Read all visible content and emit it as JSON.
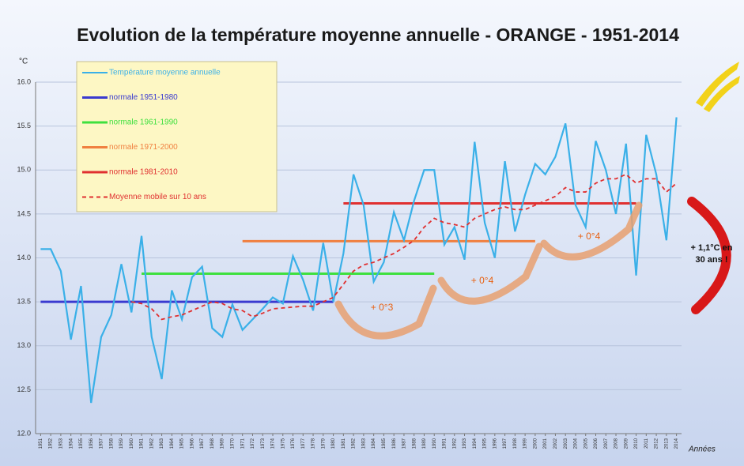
{
  "chart_data": {
    "type": "line",
    "title": "Evolution de la température moyenne annuelle - ORANGE - 1951-2014",
    "y_label": "°C",
    "x_label": "Années",
    "x": [
      1951,
      1952,
      1953,
      1954,
      1955,
      1956,
      1957,
      1958,
      1959,
      1960,
      1961,
      1962,
      1963,
      1964,
      1965,
      1966,
      1967,
      1968,
      1969,
      1970,
      1971,
      1972,
      1973,
      1974,
      1975,
      1976,
      1977,
      1978,
      1979,
      1980,
      1981,
      1982,
      1983,
      1984,
      1985,
      1986,
      1987,
      1988,
      1989,
      1990,
      1991,
      1992,
      1993,
      1994,
      1995,
      1996,
      1997,
      1998,
      1999,
      2000,
      2001,
      2002,
      2003,
      2004,
      2005,
      2006,
      2007,
      2008,
      2009,
      2010,
      2011,
      2012,
      2013,
      2014
    ],
    "xlim": [
      1950.5,
      2014.5
    ],
    "ylim": [
      12,
      16
    ],
    "yticks": [
      {
        "value": 12,
        "label": "12.0"
      },
      {
        "value": 12.5,
        "label": "12.5"
      },
      {
        "value": 13,
        "label": "13.0"
      },
      {
        "value": 13.5,
        "label": "13.5"
      },
      {
        "value": 14,
        "label": "14.0"
      },
      {
        "value": 14.5,
        "label": "14.5"
      },
      {
        "value": 15,
        "label": "15.0"
      },
      {
        "value": 15.5,
        "label": "15.5"
      },
      {
        "value": 16,
        "label": "16.0"
      }
    ],
    "series": [
      {
        "name": "Température moyenne annuelle",
        "color": "#3ab0e8",
        "dashed": false,
        "values": [
          14.1,
          14.1,
          13.85,
          13.07,
          13.68,
          12.35,
          13.1,
          13.35,
          13.93,
          13.38,
          14.25,
          13.1,
          12.62,
          13.63,
          13.3,
          13.78,
          13.9,
          13.2,
          13.1,
          13.47,
          13.18,
          13.3,
          13.42,
          13.55,
          13.48,
          14.02,
          13.75,
          13.4,
          14.17,
          13.5,
          14.05,
          14.95,
          14.6,
          13.73,
          13.95,
          14.52,
          14.2,
          14.65,
          15.0,
          15.0,
          14.15,
          14.35,
          13.98,
          15.32,
          14.4,
          14.0,
          15.1,
          14.3,
          14.72,
          15.07,
          14.95,
          15.15,
          15.53,
          14.6,
          14.35,
          15.33,
          15.0,
          14.5,
          15.3,
          13.8,
          15.4,
          14.95,
          14.2,
          15.6
        ]
      },
      {
        "name": "Moyenne mobile sur 10 ans",
        "color": "#e03030",
        "dashed": true,
        "values": [
          null,
          null,
          null,
          null,
          null,
          null,
          null,
          null,
          null,
          13.5,
          13.48,
          13.42,
          13.3,
          13.33,
          13.35,
          13.4,
          13.45,
          13.5,
          13.48,
          13.42,
          13.4,
          13.33,
          13.37,
          13.42,
          13.43,
          13.44,
          13.45,
          13.45,
          13.5,
          13.55,
          13.7,
          13.85,
          13.92,
          13.95,
          14.0,
          14.05,
          14.12,
          14.2,
          14.35,
          14.45,
          14.4,
          14.38,
          14.35,
          14.45,
          14.5,
          14.55,
          14.58,
          14.55,
          14.55,
          14.6,
          14.65,
          14.7,
          14.8,
          14.75,
          14.75,
          14.85,
          14.9,
          14.9,
          14.95,
          14.85,
          14.9,
          14.9,
          14.75,
          14.85
        ]
      }
    ],
    "normals": [
      {
        "name": "normale 1951-1980",
        "color": "#3a3ad0",
        "value": 13.5,
        "from": 1951,
        "to": 1980
      },
      {
        "name": "normale 1961-1990",
        "color": "#3ee03e",
        "value": 13.82,
        "from": 1961,
        "to": 1990
      },
      {
        "name": "normale 1971-2000",
        "color": "#f08040",
        "value": 14.19,
        "from": 1971,
        "to": 2000
      },
      {
        "name": "normale 1981-2010",
        "color": "#e03030",
        "value": 14.62,
        "from": 1981,
        "to": 2010
      }
    ],
    "annotations": [
      "+ 0°3",
      "+ 0°4",
      "+ 0°4"
    ],
    "side_note": [
      "+ 1,1°C en",
      "30 ans !"
    ]
  }
}
